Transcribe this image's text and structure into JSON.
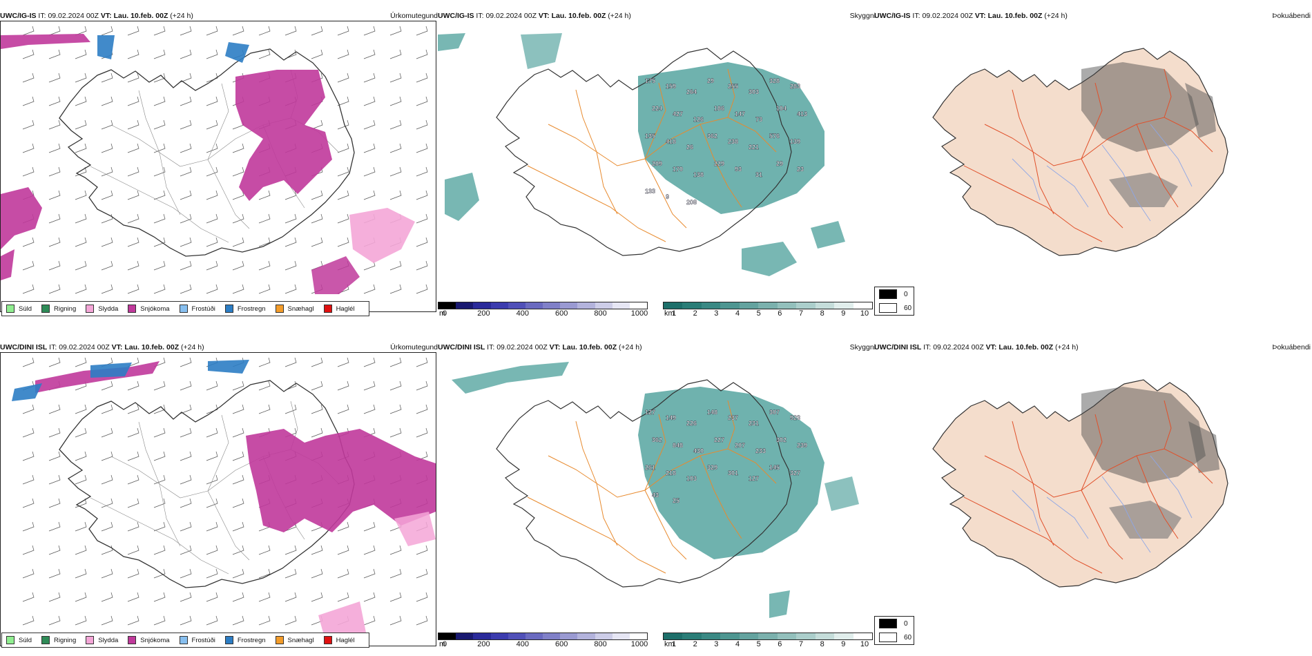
{
  "rows": [
    {
      "model": "UWC/IG-IS",
      "it_label": "IT:",
      "it_value": "09.02.2024 00Z",
      "vt_label": "VT: Lau. 10.feb. 00Z",
      "lead": "(+24 h)"
    },
    {
      "model": "UWC/DINI ISL",
      "it_label": "IT:",
      "it_value": "09.02.2024 00Z",
      "vt_label": "VT: Lau. 10.feb. 00Z",
      "lead": "(+24 h)"
    }
  ],
  "panel_titles": {
    "precip_type": "Úrkomutegund",
    "cloud_base": "Skyggni",
    "fog": "Þokuábendi"
  },
  "precip_legend": [
    {
      "label": "Súld",
      "color": "#90ee90"
    },
    {
      "label": "Rigning",
      "color": "#2e8b57"
    },
    {
      "label": "Slydda",
      "color": "#f4a6d7"
    },
    {
      "label": "Snjókoma",
      "color": "#c0399b"
    },
    {
      "label": "Frostúði",
      "color": "#87bfef"
    },
    {
      "label": "Frostregn",
      "color": "#2c7dc4"
    },
    {
      "label": "Snæhagl",
      "color": "#f39c2a"
    },
    {
      "label": "Haglél",
      "color": "#e01010"
    }
  ],
  "cloud_bar_m": {
    "unit": "m",
    "ticks": [
      "0",
      "200",
      "400",
      "600",
      "800",
      "1000"
    ],
    "colors": [
      "#000000",
      "#191970",
      "#2a2a9a",
      "#3b3bae",
      "#5050b8",
      "#6a6ac0",
      "#8080c8",
      "#9a9ad2",
      "#b3b3dc",
      "#cdcde8",
      "#e6e6f4",
      "#ffffff"
    ]
  },
  "cloud_bar_km": {
    "unit": "km",
    "ticks": [
      "1",
      "2",
      "3",
      "4",
      "5",
      "6",
      "7",
      "8",
      "9",
      "10"
    ],
    "colors": [
      "#1d6f6a",
      "#2a7d77",
      "#3a8984",
      "#4e9691",
      "#64a39f",
      "#7bb1ad",
      "#93c0bc",
      "#abcecb",
      "#c5ddda",
      "#e1eeec",
      "#ffffff"
    ]
  },
  "fog_legend": [
    {
      "label": "0",
      "color": "#000000"
    },
    {
      "label": "60",
      "color": "#ffffff"
    }
  ],
  "cloud_labels_top": [
    "175",
    "159",
    "264",
    "29",
    "255",
    "303",
    "328",
    "283",
    "224",
    "427",
    "126",
    "186",
    "147",
    "73",
    "104",
    "413",
    "135",
    "418",
    "26",
    "362",
    "238",
    "221",
    "576",
    "139",
    "209",
    "170",
    "138",
    "229",
    "93",
    "31",
    "29",
    "23",
    "133",
    "9",
    "208"
  ],
  "cloud_labels_bottom": [
    "127",
    "149",
    "226",
    "148",
    "237",
    "231",
    "307",
    "923",
    "362",
    "848",
    "430",
    "227",
    "207",
    "233",
    "302",
    "239",
    "261",
    "218",
    "103",
    "329",
    "301",
    "127",
    "145",
    "327",
    "43",
    "25"
  ]
}
